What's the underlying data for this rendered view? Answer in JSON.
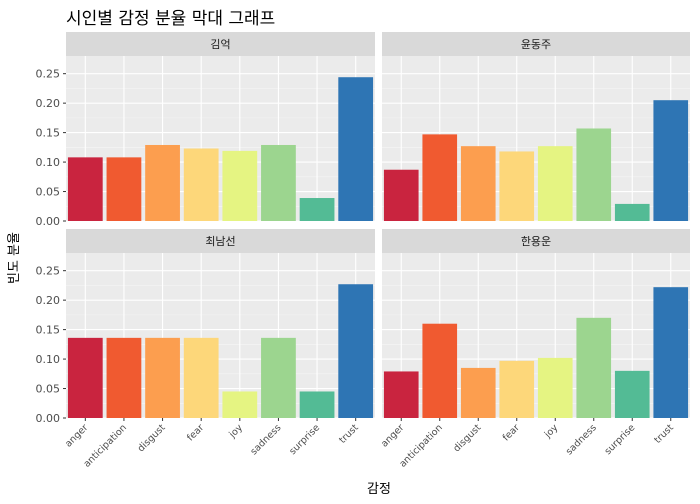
{
  "chart_data": {
    "type": "bar",
    "title": "시인별 감정 분율 막대 그래프",
    "xlabel": "감정",
    "ylabel": "빈도 분율",
    "ylim": [
      0,
      0.28
    ],
    "yticks": [
      0.0,
      0.05,
      0.1,
      0.15,
      0.2,
      0.25
    ],
    "ytick_labels": [
      "0.00",
      "0.05",
      "0.10",
      "0.15",
      "0.20",
      "0.25"
    ],
    "grid": true,
    "legend": "none",
    "categories": [
      "anger",
      "anticipation",
      "disgust",
      "fear",
      "joy",
      "sadness",
      "surprise",
      "trust"
    ],
    "colors": [
      "#c9243f",
      "#f05a30",
      "#fc9e4f",
      "#fdd77a",
      "#e5f482",
      "#9cd58f",
      "#53bb95",
      "#2e75b4"
    ],
    "panels": [
      {
        "name": "김억",
        "values": [
          0.108,
          0.108,
          0.129,
          0.123,
          0.119,
          0.129,
          0.039,
          0.244
        ]
      },
      {
        "name": "윤동주",
        "values": [
          0.087,
          0.147,
          0.127,
          0.118,
          0.127,
          0.157,
          0.029,
          0.205
        ]
      },
      {
        "name": "최남선",
        "values": [
          0.136,
          0.136,
          0.136,
          0.136,
          0.045,
          0.136,
          0.045,
          0.227
        ]
      },
      {
        "name": "한용운",
        "values": [
          0.079,
          0.16,
          0.085,
          0.097,
          0.102,
          0.17,
          0.08,
          0.222
        ]
      }
    ]
  }
}
